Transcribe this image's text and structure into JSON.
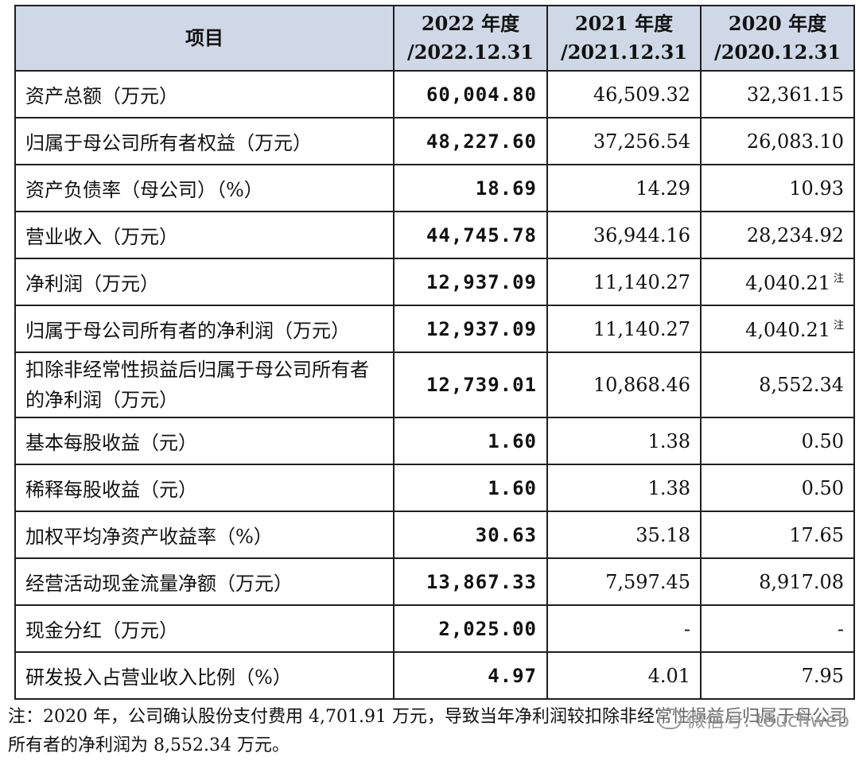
{
  "table": {
    "headers": [
      {
        "line1": "项目",
        "line2": ""
      },
      {
        "line1": "2022 年度",
        "line2": "/2022.12.31"
      },
      {
        "line1": "2021 年度",
        "line2": "/2021.12.31"
      },
      {
        "line1": "2020 年度",
        "line2": "/2020.12.31"
      }
    ],
    "rows": [
      {
        "item": "资产总额（万元）",
        "y2022": "60,004.80",
        "y2021": "46,509.32",
        "y2020": "32,361.15",
        "note2020": ""
      },
      {
        "item": "归属于母公司所有者权益（万元）",
        "y2022": "48,227.60",
        "y2021": "37,256.54",
        "y2020": "26,083.10",
        "note2020": ""
      },
      {
        "item": "资产负债率（母公司）（%）",
        "y2022": "18.69",
        "y2021": "14.29",
        "y2020": "10.93",
        "note2020": ""
      },
      {
        "item": "营业收入（万元）",
        "y2022": "44,745.78",
        "y2021": "36,944.16",
        "y2020": "28,234.92",
        "note2020": ""
      },
      {
        "item": "净利润（万元）",
        "y2022": "12,937.09",
        "y2021": "11,140.27",
        "y2020": "4,040.21",
        "note2020": "注"
      },
      {
        "item": "归属于母公司所有者的净利润（万元）",
        "y2022": "12,937.09",
        "y2021": "11,140.27",
        "y2020": "4,040.21",
        "note2020": "注"
      },
      {
        "item": "扣除非经常性损益后归属于母公司所有者的净利润（万元）",
        "y2022": "12,739.01",
        "y2021": "10,868.46",
        "y2020": "8,552.34",
        "note2020": ""
      },
      {
        "item": "基本每股收益（元）",
        "y2022": "1.60",
        "y2021": "1.38",
        "y2020": "0.50",
        "note2020": ""
      },
      {
        "item": "稀释每股收益（元）",
        "y2022": "1.60",
        "y2021": "1.38",
        "y2020": "0.50",
        "note2020": ""
      },
      {
        "item": "加权平均净资产收益率（%）",
        "y2022": "30.63",
        "y2021": "35.18",
        "y2020": "17.65",
        "note2020": ""
      },
      {
        "item": "经营活动现金流量净额（万元）",
        "y2022": "13,867.33",
        "y2021": "7,597.45",
        "y2020": "8,917.08",
        "note2020": ""
      },
      {
        "item": "现金分红（万元）",
        "y2022": "2,025.00",
        "y2021": "-",
        "y2020": "-",
        "note2020": ""
      },
      {
        "item": "研发投入占营业收入比例（%）",
        "y2022": "4.97",
        "y2021": "4.01",
        "y2020": "7.95",
        "note2020": ""
      }
    ]
  },
  "footnote": "注：2020 年，公司确认股份支付费用 4,701.91 万元，导致当年净利润较扣除非经常性损益后归属于母公司所有者的净利润为 8,552.34 万元。",
  "watermark": {
    "text": "微信号: touchweb",
    "icon": "wechat-icon"
  }
}
